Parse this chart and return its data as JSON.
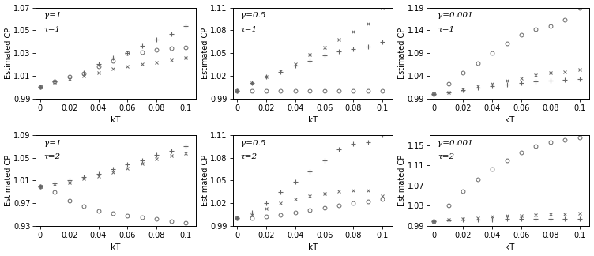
{
  "kT": [
    0.0,
    0.01,
    0.02,
    0.03,
    0.04,
    0.05,
    0.06,
    0.07,
    0.08,
    0.09,
    0.1
  ],
  "subplots": [
    {
      "label_gamma": "γ=1",
      "label_tau": "τ=1",
      "ylim": [
        0.99,
        1.07
      ],
      "yticks": [
        0.99,
        1.01,
        1.03,
        1.05,
        1.07
      ],
      "circle": [
        1.0,
        1.005,
        1.009,
        1.012,
        1.018,
        1.023,
        1.03,
        1.031,
        1.033,
        1.034,
        1.035
      ],
      "plus": [
        1.0,
        1.005,
        1.009,
        1.013,
        1.02,
        1.026,
        1.03,
        1.036,
        1.042,
        1.047,
        1.054
      ],
      "cross": [
        1.0,
        1.004,
        1.007,
        1.01,
        1.013,
        1.016,
        1.018,
        1.02,
        1.022,
        1.024,
        1.026
      ]
    },
    {
      "label_gamma": "γ=0.5",
      "label_tau": "τ=1",
      "ylim": [
        0.99,
        1.11
      ],
      "yticks": [
        0.99,
        1.02,
        1.05,
        1.08,
        1.11
      ],
      "circle": [
        1.0,
        1.0,
        1.0,
        1.0,
        1.0,
        1.0,
        1.0,
        1.0,
        1.0,
        1.0,
        1.0
      ],
      "plus": [
        1.0,
        1.01,
        1.019,
        1.025,
        1.033,
        1.04,
        1.047,
        1.052,
        1.055,
        1.058,
        1.065
      ],
      "cross": [
        1.0,
        1.01,
        1.019,
        1.026,
        1.036,
        1.048,
        1.057,
        1.068,
        1.078,
        1.089,
        1.11
      ]
    },
    {
      "label_gamma": "γ=0.001",
      "label_tau": "τ=1",
      "ylim": [
        0.99,
        1.19
      ],
      "yticks": [
        0.99,
        1.04,
        1.09,
        1.14,
        1.19
      ],
      "circle": [
        1.0,
        1.022,
        1.047,
        1.068,
        1.091,
        1.111,
        1.13,
        1.143,
        1.15,
        1.163,
        1.19
      ],
      "plus": [
        1.0,
        1.003,
        1.008,
        1.013,
        1.017,
        1.021,
        1.024,
        1.027,
        1.029,
        1.031,
        1.032
      ],
      "cross": [
        1.0,
        1.004,
        1.011,
        1.017,
        1.023,
        1.029,
        1.035,
        1.041,
        1.046,
        1.049,
        1.053
      ]
    },
    {
      "label_gamma": "γ=1",
      "label_tau": "τ=2",
      "ylim": [
        0.93,
        1.09
      ],
      "yticks": [
        0.93,
        0.97,
        1.01,
        1.05,
        1.09
      ],
      "circle": [
        1.0,
        0.99,
        0.975,
        0.965,
        0.957,
        0.952,
        0.948,
        0.945,
        0.942,
        0.938,
        0.935
      ],
      "plus": [
        1.0,
        1.005,
        1.01,
        1.016,
        1.022,
        1.03,
        1.038,
        1.046,
        1.055,
        1.062,
        1.07
      ],
      "cross": [
        1.0,
        1.003,
        1.007,
        1.013,
        1.018,
        1.025,
        1.032,
        1.04,
        1.048,
        1.053,
        1.058
      ]
    },
    {
      "label_gamma": "γ=0.5",
      "label_tau": "τ=2",
      "ylim": [
        0.99,
        1.11
      ],
      "yticks": [
        0.99,
        1.02,
        1.05,
        1.08,
        1.11
      ],
      "circle": [
        1.0,
        1.0,
        1.002,
        1.005,
        1.008,
        1.011,
        1.014,
        1.017,
        1.02,
        1.022,
        1.025
      ],
      "plus": [
        1.0,
        1.008,
        1.02,
        1.035,
        1.048,
        1.062,
        1.077,
        1.091,
        1.098,
        1.1,
        1.11
      ],
      "cross": [
        1.0,
        1.005,
        1.013,
        1.02,
        1.025,
        1.03,
        1.033,
        1.036,
        1.037,
        1.037,
        1.03
      ]
    },
    {
      "label_gamma": "γ=0.001",
      "label_tau": "τ=2",
      "ylim": [
        0.99,
        1.17
      ],
      "yticks": [
        0.99,
        1.03,
        1.07,
        1.11,
        1.15
      ],
      "circle": [
        1.0,
        1.03,
        1.058,
        1.082,
        1.103,
        1.12,
        1.135,
        1.148,
        1.155,
        1.16,
        1.165
      ],
      "plus": [
        1.0,
        1.001,
        1.002,
        1.003,
        1.003,
        1.004,
        1.004,
        1.004,
        1.004,
        1.004,
        1.004
      ],
      "cross": [
        1.0,
        1.002,
        1.004,
        1.006,
        1.008,
        1.01,
        1.011,
        1.012,
        1.013,
        1.014,
        1.015
      ]
    }
  ],
  "xlabel": "kT",
  "ylabel": "Estimated CP",
  "marker_color": "#666666",
  "fontsize": 7,
  "label_fontsize": 7.5
}
